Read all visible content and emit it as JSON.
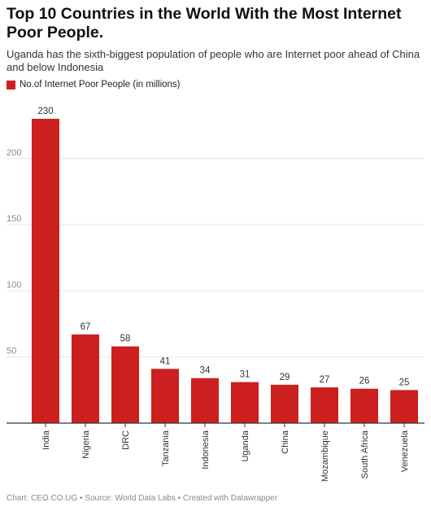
{
  "title": "Top 10 Countries in the World With the Most Internet Poor People.",
  "subtitle": "Uganda has the sixth-biggest population of people who are Internet poor ahead of China and below Indonesia",
  "footer": "Chart: CEO.CO.UG • Source: World Data Labs • Created with Datawrapper",
  "colors": {
    "bar": "#cc1f1f",
    "grid": "#e6e6e6",
    "axis": "#333333",
    "tick_text": "#888888",
    "label_text": "#333333"
  },
  "chart_data": {
    "type": "bar",
    "categories": [
      "India",
      "Nigeria",
      "DRC",
      "Tanzania",
      "Indonesia",
      "Uganda",
      "China",
      "Mozambique",
      "South Africa",
      "Venezuela"
    ],
    "series": [
      {
        "name": "No.of Internet Poor People (in millions)",
        "values": [
          230,
          67,
          58,
          41,
          34,
          31,
          29,
          27,
          26,
          25
        ]
      }
    ],
    "yticks": [
      50,
      100,
      150,
      200
    ],
    "ylim": [
      0,
      230
    ],
    "grid": true,
    "legend": "top-left",
    "xlabel": "",
    "ylabel": ""
  }
}
